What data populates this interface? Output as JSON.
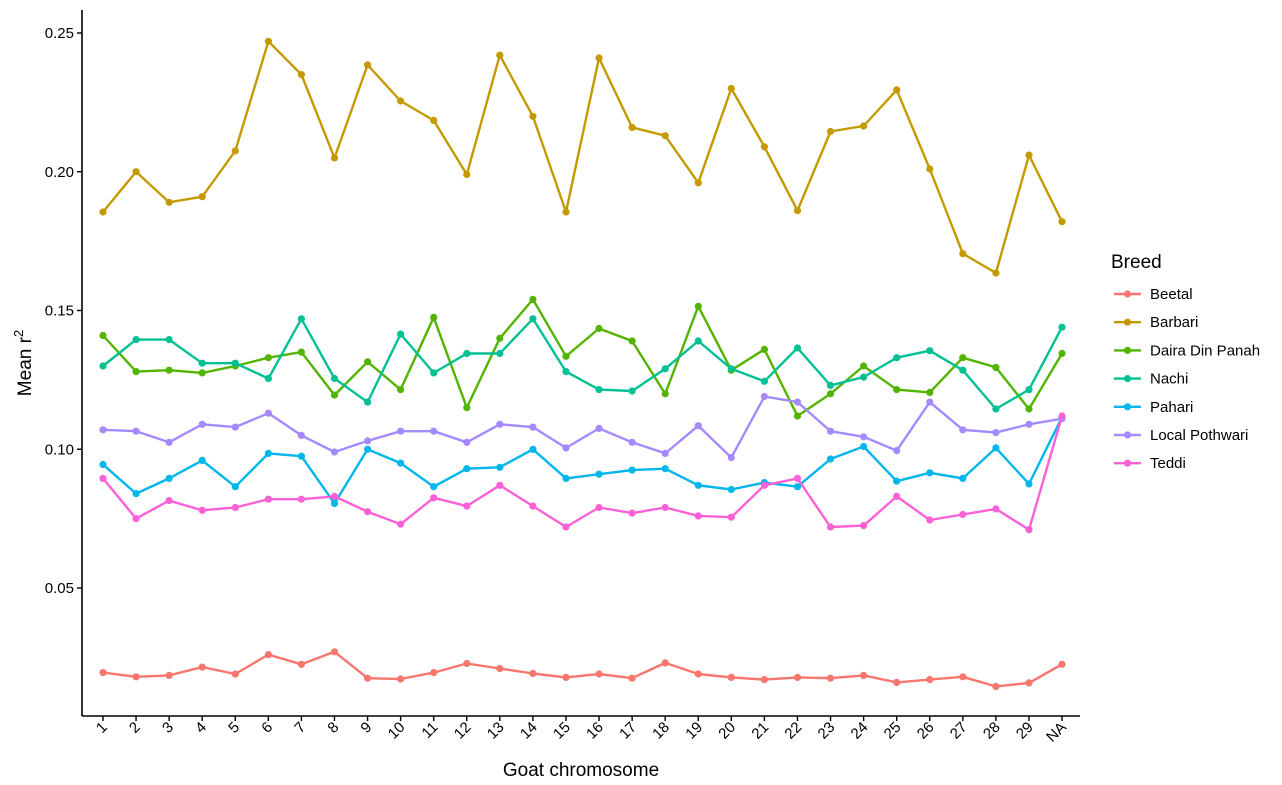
{
  "chart_data": {
    "type": "line",
    "title": "",
    "xlabel": "Goat chromosome",
    "ylabel": "Mean r",
    "ylabel_superscript": "2",
    "ylim": [
      0.007,
      0.262
    ],
    "yticks": [
      0.05,
      0.1,
      0.15,
      0.2,
      0.25
    ],
    "ytick_labels": [
      "0.05",
      "0.10",
      "0.15",
      "0.20",
      "0.25"
    ],
    "grid": false,
    "categories": [
      "1",
      "2",
      "3",
      "4",
      "5",
      "6",
      "7",
      "8",
      "9",
      "10",
      "11",
      "12",
      "13",
      "14",
      "15",
      "16",
      "17",
      "18",
      "19",
      "20",
      "21",
      "22",
      "23",
      "24",
      "25",
      "26",
      "27",
      "28",
      "29",
      "NA"
    ],
    "legend": {
      "title": "Breed",
      "position": "right"
    },
    "series": [
      {
        "name": "Beetal",
        "color": "#F8766D",
        "values": [
          0.0195,
          0.018,
          0.0185,
          0.0215,
          0.019,
          0.026,
          0.0225,
          0.027,
          0.0175,
          0.0172,
          0.0195,
          0.0228,
          0.021,
          0.0192,
          0.0178,
          0.019,
          0.0175,
          0.023,
          0.019,
          0.0178,
          0.017,
          0.0178,
          0.0175,
          0.0185,
          0.016,
          0.017,
          0.018,
          0.0145,
          0.0158,
          0.0225
        ]
      },
      {
        "name": "Barbari",
        "color": "#C49A00",
        "values": [
          0.1855,
          0.2,
          0.189,
          0.191,
          0.2075,
          0.247,
          0.235,
          0.205,
          0.2385,
          0.2255,
          0.2185,
          0.199,
          0.242,
          0.22,
          0.1855,
          0.241,
          0.216,
          0.213,
          0.196,
          0.23,
          0.209,
          0.186,
          0.2145,
          0.2165,
          0.2295,
          0.201,
          0.1705,
          0.1635,
          0.206,
          0.182
        ]
      },
      {
        "name": "Daira Din Panah",
        "color": "#53B400",
        "values": [
          0.141,
          0.128,
          0.1285,
          0.1275,
          0.13,
          0.133,
          0.135,
          0.1195,
          0.1315,
          0.1215,
          0.1475,
          0.115,
          0.14,
          0.154,
          0.1335,
          0.1435,
          0.139,
          0.12,
          0.1515,
          0.1285,
          0.136,
          0.112,
          0.12,
          0.13,
          0.1215,
          0.1205,
          0.133,
          0.1295,
          0.1145,
          0.1345
        ]
      },
      {
        "name": "Nachi",
        "color": "#00C094",
        "values": [
          0.13,
          0.1395,
          0.1395,
          0.131,
          0.131,
          0.1255,
          0.147,
          0.1255,
          0.117,
          0.1415,
          0.1275,
          0.1345,
          0.1345,
          0.147,
          0.128,
          0.1215,
          0.121,
          0.129,
          0.139,
          0.129,
          0.1245,
          0.1365,
          0.123,
          0.126,
          0.133,
          0.1355,
          0.1285,
          0.1145,
          0.1215,
          0.144
        ]
      },
      {
        "name": "Pahari",
        "color": "#00B6EB",
        "values": [
          0.0945,
          0.084,
          0.0895,
          0.096,
          0.0865,
          0.0985,
          0.0975,
          0.0805,
          0.1,
          0.095,
          0.0865,
          0.093,
          0.0935,
          0.1,
          0.0895,
          0.091,
          0.0925,
          0.093,
          0.087,
          0.0855,
          0.088,
          0.0865,
          0.0965,
          0.101,
          0.0885,
          0.0915,
          0.0895,
          0.1005,
          0.0875,
          0.1115
        ]
      },
      {
        "name": "Local Pothwari",
        "color": "#A58AFF",
        "values": [
          0.107,
          0.1065,
          0.1025,
          0.109,
          0.108,
          0.113,
          0.105,
          0.099,
          0.103,
          0.1065,
          0.1065,
          0.1025,
          0.109,
          0.108,
          0.1005,
          0.1075,
          0.1025,
          0.0985,
          0.1085,
          0.097,
          0.119,
          0.117,
          0.1065,
          0.1045,
          0.0995,
          0.117,
          0.107,
          0.106,
          0.109,
          0.111
        ]
      },
      {
        "name": "Teddi",
        "color": "#FB61D7",
        "values": [
          0.0895,
          0.075,
          0.0815,
          0.078,
          0.079,
          0.082,
          0.082,
          0.083,
          0.0775,
          0.073,
          0.0825,
          0.0795,
          0.087,
          0.0795,
          0.072,
          0.079,
          0.077,
          0.079,
          0.076,
          0.0755,
          0.087,
          0.0895,
          0.072,
          0.0725,
          0.083,
          0.0745,
          0.0765,
          0.0785,
          0.071,
          0.112
        ]
      }
    ]
  }
}
